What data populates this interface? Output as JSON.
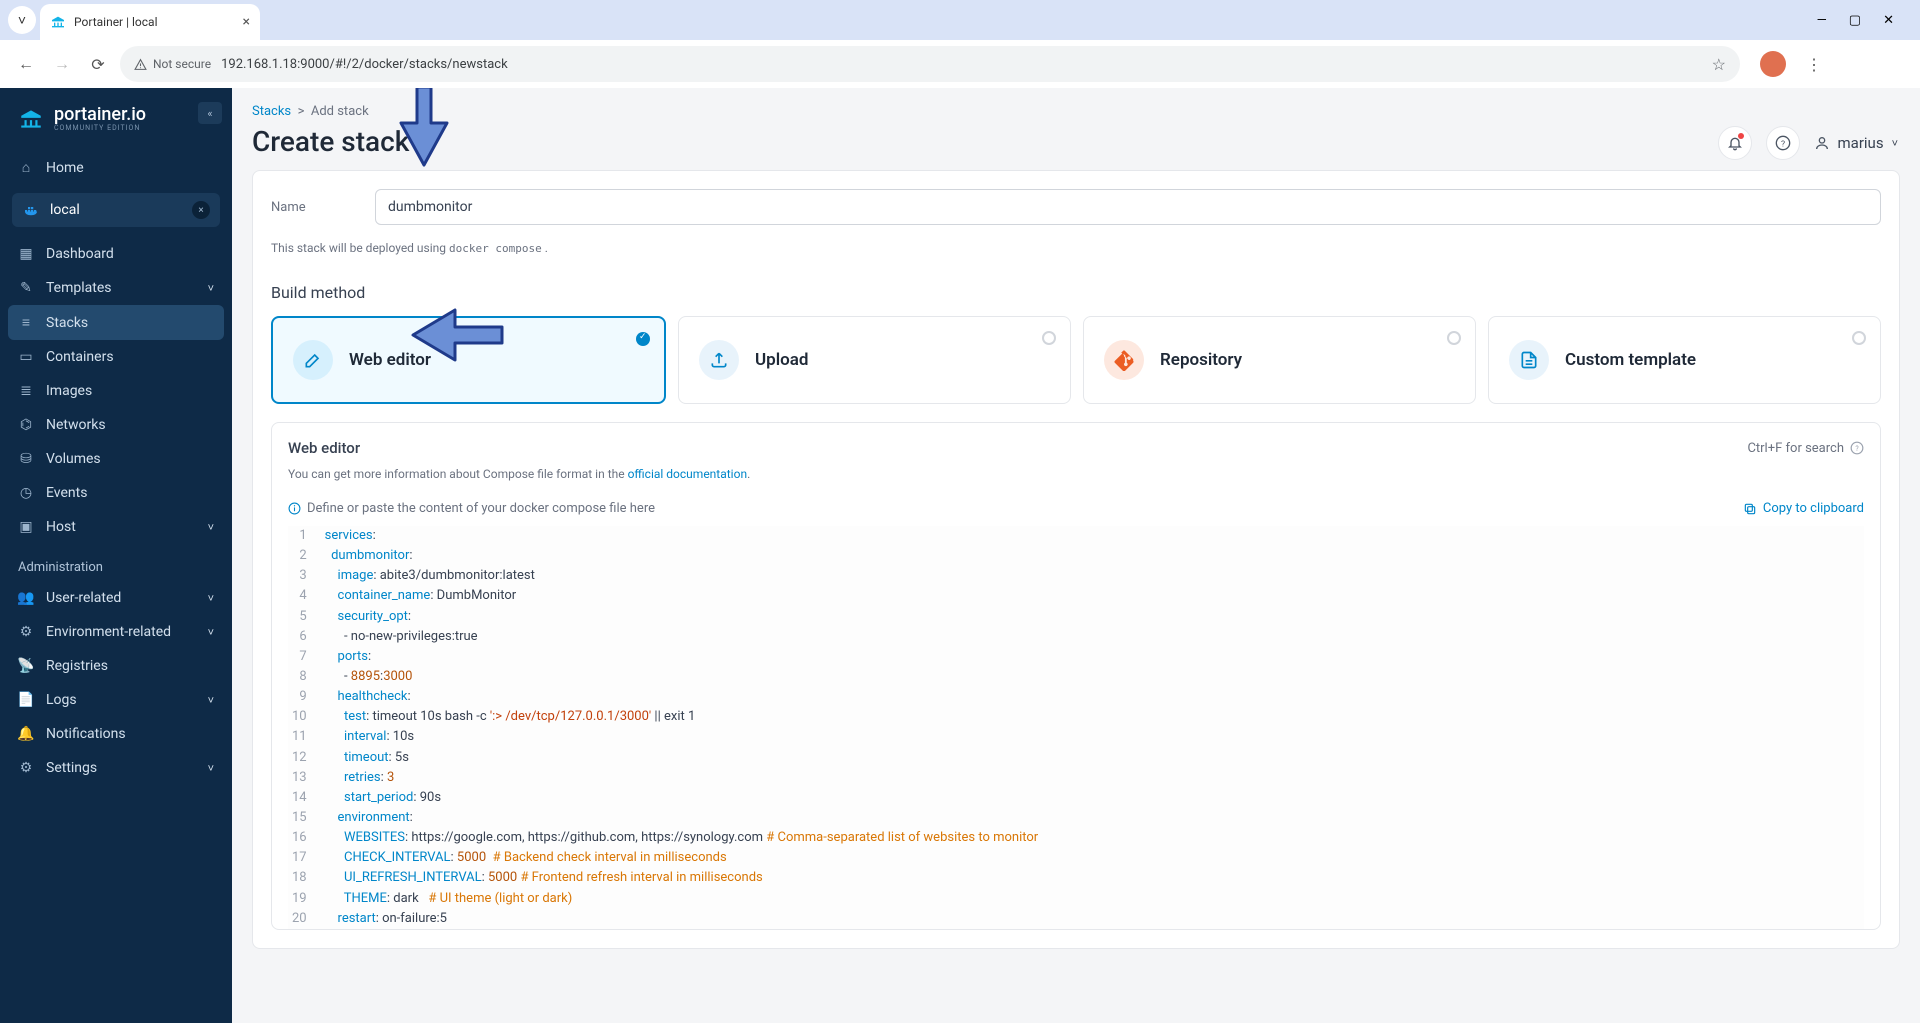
{
  "browser": {
    "tab_title": "Portainer | local",
    "not_secure": "Not secure",
    "url": "192.168.1.18:9000/#!/2/docker/stacks/newstack"
  },
  "sidebar": {
    "brand": "portainer.io",
    "brand_sub": "COMMUNITY EDITION",
    "home": "Home",
    "environment": "local",
    "items": [
      {
        "icon": "dashboard",
        "label": "Dashboard"
      },
      {
        "icon": "templates",
        "label": "Templates",
        "chev": true
      },
      {
        "icon": "stacks",
        "label": "Stacks",
        "active": true
      },
      {
        "icon": "containers",
        "label": "Containers"
      },
      {
        "icon": "images",
        "label": "Images"
      },
      {
        "icon": "networks",
        "label": "Networks"
      },
      {
        "icon": "volumes",
        "label": "Volumes"
      },
      {
        "icon": "events",
        "label": "Events"
      },
      {
        "icon": "host",
        "label": "Host",
        "chev": true
      }
    ],
    "admin_label": "Administration",
    "admin_items": [
      {
        "icon": "users",
        "label": "User-related",
        "chev": true
      },
      {
        "icon": "env",
        "label": "Environment-related",
        "chev": true
      },
      {
        "icon": "reg",
        "label": "Registries"
      },
      {
        "icon": "logs",
        "label": "Logs",
        "chev": true
      },
      {
        "icon": "bell",
        "label": "Notifications"
      },
      {
        "icon": "settings",
        "label": "Settings",
        "chev": true
      }
    ]
  },
  "header": {
    "breadcrumb_parent": "Stacks",
    "breadcrumb_current": "Add stack",
    "title": "Create stack",
    "username": "marius"
  },
  "form": {
    "name_label": "Name",
    "name_value": "dumbmonitor",
    "hint_pre": "This stack will be deployed using ",
    "hint_code": "docker compose",
    "hint_post": " .",
    "build_method": "Build method",
    "methods": [
      {
        "id": "web-editor",
        "label": "Web editor",
        "icon": "edit",
        "color": "#0086c9",
        "selected": true
      },
      {
        "id": "upload",
        "label": "Upload",
        "icon": "upload",
        "color": "#0086c9"
      },
      {
        "id": "repository",
        "label": "Repository",
        "icon": "git",
        "color": "#eb5d23"
      },
      {
        "id": "custom-template",
        "label": "Custom template",
        "icon": "file",
        "color": "#0086c9"
      }
    ]
  },
  "editor": {
    "title": "Web editor",
    "search_hint": "Ctrl+F for search",
    "sub_pre": "You can get more information about Compose file format in the ",
    "sub_link": "official documentation",
    "sub_post": ".",
    "info_text": "Define or paste the content of your docker compose file here",
    "copy_text": "Copy to clipboard"
  },
  "code": {
    "lines": [
      [
        [
          "key",
          "services"
        ],
        [
          "p",
          ":"
        ]
      ],
      [
        [
          "p",
          "  "
        ],
        [
          "key",
          "dumbmonitor"
        ],
        [
          "p",
          ":"
        ]
      ],
      [
        [
          "p",
          "    "
        ],
        [
          "key",
          "image"
        ],
        [
          "p",
          ": abite3/dumbmonitor:latest"
        ]
      ],
      [
        [
          "p",
          "    "
        ],
        [
          "key",
          "container_name"
        ],
        [
          "p",
          ": DumbMonitor"
        ]
      ],
      [
        [
          "p",
          "    "
        ],
        [
          "key",
          "security_opt"
        ],
        [
          "p",
          ":"
        ]
      ],
      [
        [
          "p",
          "      - no-new-privileges:true"
        ]
      ],
      [
        [
          "p",
          "    "
        ],
        [
          "key",
          "ports"
        ],
        [
          "p",
          ":"
        ]
      ],
      [
        [
          "p",
          "      - "
        ],
        [
          "num",
          "8895"
        ],
        [
          "p",
          ":"
        ],
        [
          "num",
          "3000"
        ]
      ],
      [
        [
          "p",
          "    "
        ],
        [
          "key",
          "healthcheck"
        ],
        [
          "p",
          ":"
        ]
      ],
      [
        [
          "p",
          "      "
        ],
        [
          "key",
          "test"
        ],
        [
          "p",
          ": timeout 10s bash -c "
        ],
        [
          "str",
          "':> /dev/tcp/127.0.0.1/3000'"
        ],
        [
          "p",
          " || exit 1"
        ]
      ],
      [
        [
          "p",
          "      "
        ],
        [
          "key",
          "interval"
        ],
        [
          "p",
          ": 10s"
        ]
      ],
      [
        [
          "p",
          "      "
        ],
        [
          "key",
          "timeout"
        ],
        [
          "p",
          ": 5s"
        ]
      ],
      [
        [
          "p",
          "      "
        ],
        [
          "key",
          "retries"
        ],
        [
          "p",
          ": "
        ],
        [
          "num",
          "3"
        ]
      ],
      [
        [
          "p",
          "      "
        ],
        [
          "key",
          "start_period"
        ],
        [
          "p",
          ": 90s"
        ]
      ],
      [
        [
          "p",
          "    "
        ],
        [
          "key",
          "environment"
        ],
        [
          "p",
          ":"
        ]
      ],
      [
        [
          "p",
          "      "
        ],
        [
          "key",
          "WEBSITES"
        ],
        [
          "p",
          ": https://google.com, https://github.com, https://synology.com "
        ],
        [
          "comment",
          "# Comma-separated list of websites to monitor"
        ]
      ],
      [
        [
          "p",
          "      "
        ],
        [
          "key",
          "CHECK_INTERVAL"
        ],
        [
          "p",
          ": "
        ],
        [
          "num",
          "5000"
        ],
        [
          "p",
          "  "
        ],
        [
          "comment",
          "# Backend check interval in milliseconds"
        ]
      ],
      [
        [
          "p",
          "      "
        ],
        [
          "key",
          "UI_REFRESH_INTERVAL"
        ],
        [
          "p",
          ": "
        ],
        [
          "num",
          "5000"
        ],
        [
          "p",
          " "
        ],
        [
          "comment",
          "# Frontend refresh interval in milliseconds"
        ]
      ],
      [
        [
          "p",
          "      "
        ],
        [
          "key",
          "THEME"
        ],
        [
          "p",
          ": dark   "
        ],
        [
          "comment",
          "# UI theme (light or dark)"
        ]
      ],
      [
        [
          "p",
          "    "
        ],
        [
          "key",
          "restart"
        ],
        [
          "p",
          ": on-failure:5"
        ]
      ]
    ]
  },
  "colors": {
    "arrow_fill": "#6b8fd6",
    "arrow_stroke": "#1f3a8a"
  }
}
